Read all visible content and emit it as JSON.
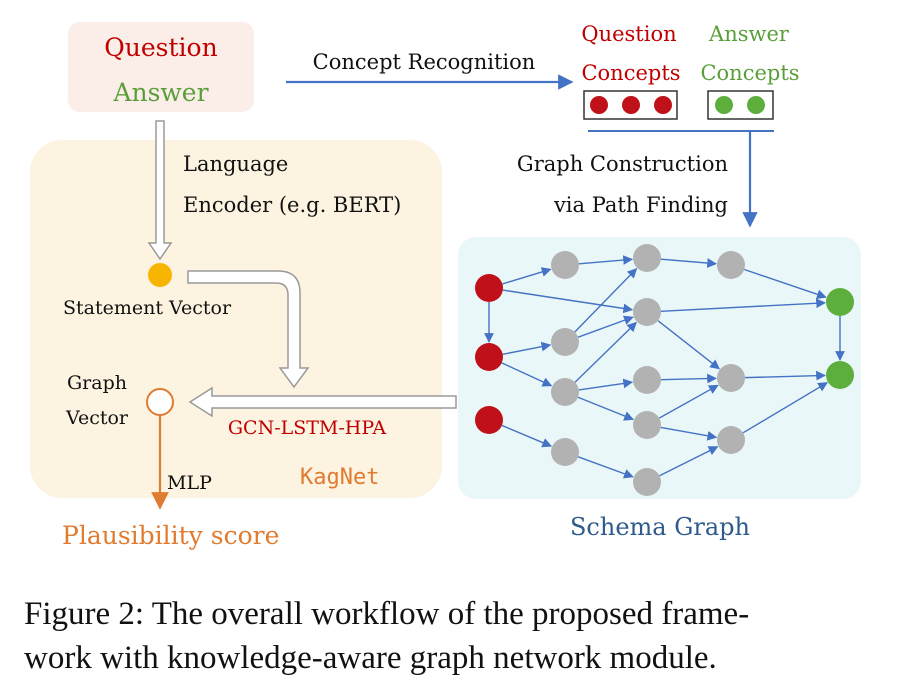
{
  "input_box": {
    "question_label": "Question",
    "answer_label": "Answer"
  },
  "concept_recognition_label": "Concept Recognition",
  "question_concepts": {
    "line1": "Question",
    "line2": "Concepts",
    "count": 3
  },
  "answer_concepts": {
    "line1": "Answer",
    "line2": "Concepts",
    "count": 2
  },
  "graph_construction": {
    "line1": "Graph Construction",
    "line2": "via Path Finding"
  },
  "kagnet_panel": {
    "encoder_line1": "Language",
    "encoder_line2": "Encoder (e.g. BERT)",
    "statement_vector_label": "Statement Vector",
    "graph_vector_line1": "Graph",
    "graph_vector_line2": "Vector",
    "gcn_label": "GCN-LSTM-HPA",
    "mlp_label": "MLP",
    "kagnet_label": "KagNet"
  },
  "output_label": "Plausibility score",
  "schema_graph_label": "Schema Graph",
  "caption": {
    "line1": "Figure 2: The overall workflow of the proposed frame-",
    "line2": "work with knowledge-aware graph network module."
  },
  "colors": {
    "question_red": "#c00000",
    "answer_green": "#5a9e3a",
    "node_red": "#c0101a",
    "node_green": "#5eae3e",
    "node_gray": "#b2b2b2",
    "edge_blue": "#4472c4",
    "orange": "#e07b30",
    "kagnet_panel_bg": "#fdf3e1",
    "schema_panel_bg": "#eaf7f9",
    "input_box_bg": "#fbeee8",
    "schema_title_blue": "#2e5a8c",
    "gold_node": "#f7b500"
  }
}
